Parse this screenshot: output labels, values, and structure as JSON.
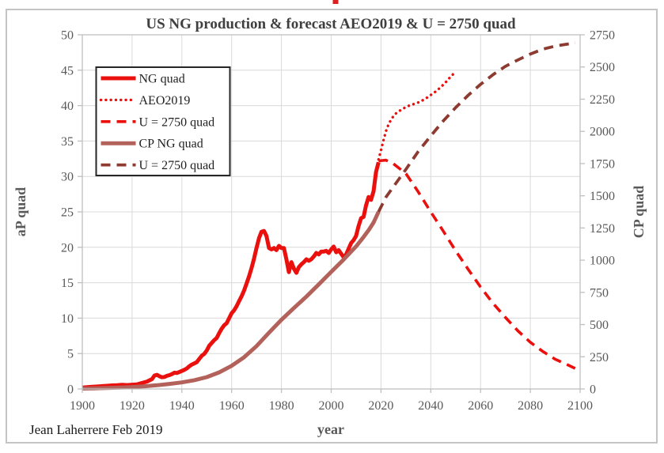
{
  "figure": {
    "attribution": "Jean Laherrere Feb 2019"
  },
  "chart_data": {
    "type": "line",
    "title": "US NG production & forecast AEO2019 & U = 2750 quad",
    "xlabel": "year",
    "ylabel_left": "aP quad",
    "ylabel_right": "CP quad",
    "x_range": [
      1900,
      2100
    ],
    "left_range": [
      0,
      50
    ],
    "right_range": [
      0,
      2750
    ],
    "x_ticks": [
      1900,
      1920,
      1940,
      1960,
      1980,
      2000,
      2020,
      2040,
      2060,
      2080,
      2100
    ],
    "left_ticks": [
      0,
      5,
      10,
      15,
      20,
      25,
      30,
      35,
      40,
      45,
      50
    ],
    "right_ticks": [
      0,
      250,
      500,
      750,
      1000,
      1250,
      1500,
      1750,
      2000,
      2250,
      2500,
      2750
    ],
    "grid": true,
    "legend_position": "top-left",
    "colors": {
      "red": "#ea100e",
      "brick": "#b2625a",
      "dark_brick": "#8d3a30",
      "grid": "#d9d9d9",
      "axis_line": "#bfbfbf",
      "tick_text": "#595959",
      "title_text": "#3f3f3f",
      "legend_border": "#262626",
      "frame": "#c4c4c4",
      "attribution_text": "#1a1a1a"
    },
    "series": [
      {
        "name": "NG quad",
        "axis": "left",
        "line": "solid",
        "width": 5,
        "color": "#ea100e",
        "points": [
          [
            1900,
            0.2
          ],
          [
            1902,
            0.25
          ],
          [
            1904,
            0.3
          ],
          [
            1906,
            0.35
          ],
          [
            1908,
            0.4
          ],
          [
            1910,
            0.45
          ],
          [
            1912,
            0.5
          ],
          [
            1914,
            0.52
          ],
          [
            1916,
            0.58
          ],
          [
            1918,
            0.55
          ],
          [
            1920,
            0.6
          ],
          [
            1922,
            0.65
          ],
          [
            1924,
            0.85
          ],
          [
            1926,
            1.05
          ],
          [
            1928,
            1.4
          ],
          [
            1929,
            1.9
          ],
          [
            1930,
            2.0
          ],
          [
            1931,
            1.8
          ],
          [
            1932,
            1.65
          ],
          [
            1933,
            1.7
          ],
          [
            1934,
            1.85
          ],
          [
            1935,
            1.95
          ],
          [
            1936,
            2.1
          ],
          [
            1937,
            2.3
          ],
          [
            1938,
            2.25
          ],
          [
            1939,
            2.4
          ],
          [
            1940,
            2.55
          ],
          [
            1941,
            2.7
          ],
          [
            1942,
            2.9
          ],
          [
            1943,
            3.2
          ],
          [
            1944,
            3.45
          ],
          [
            1945,
            3.6
          ],
          [
            1946,
            3.8
          ],
          [
            1947,
            4.25
          ],
          [
            1948,
            4.7
          ],
          [
            1949,
            4.95
          ],
          [
            1950,
            5.45
          ],
          [
            1951,
            6.1
          ],
          [
            1952,
            6.5
          ],
          [
            1953,
            6.9
          ],
          [
            1954,
            7.2
          ],
          [
            1955,
            7.9
          ],
          [
            1956,
            8.5
          ],
          [
            1957,
            9.0
          ],
          [
            1958,
            9.3
          ],
          [
            1959,
            10.0
          ],
          [
            1960,
            10.7
          ],
          [
            1961,
            11.1
          ],
          [
            1962,
            11.7
          ],
          [
            1963,
            12.4
          ],
          [
            1964,
            13.1
          ],
          [
            1965,
            13.9
          ],
          [
            1966,
            14.9
          ],
          [
            1967,
            15.9
          ],
          [
            1968,
            17.1
          ],
          [
            1969,
            18.4
          ],
          [
            1970,
            19.9
          ],
          [
            1971,
            21.3
          ],
          [
            1972,
            22.2
          ],
          [
            1973,
            22.3
          ],
          [
            1974,
            21.6
          ],
          [
            1975,
            19.9
          ],
          [
            1976,
            19.7
          ],
          [
            1977,
            19.9
          ],
          [
            1978,
            19.6
          ],
          [
            1979,
            20.2
          ],
          [
            1980,
            19.9
          ],
          [
            1981,
            19.9
          ],
          [
            1982,
            18.3
          ],
          [
            1983,
            16.5
          ],
          [
            1984,
            17.9
          ],
          [
            1985,
            17.0
          ],
          [
            1986,
            16.4
          ],
          [
            1987,
            17.2
          ],
          [
            1988,
            17.6
          ],
          [
            1989,
            17.9
          ],
          [
            1990,
            18.3
          ],
          [
            1991,
            18.1
          ],
          [
            1992,
            18.3
          ],
          [
            1993,
            18.7
          ],
          [
            1994,
            19.2
          ],
          [
            1995,
            19.0
          ],
          [
            1996,
            19.4
          ],
          [
            1997,
            19.4
          ],
          [
            1998,
            19.5
          ],
          [
            1999,
            19.2
          ],
          [
            2000,
            19.7
          ],
          [
            2001,
            20.1
          ],
          [
            2002,
            19.3
          ],
          [
            2003,
            19.6
          ],
          [
            2004,
            19.1
          ],
          [
            2005,
            18.6
          ],
          [
            2006,
            19.0
          ],
          [
            2007,
            19.8
          ],
          [
            2008,
            20.6
          ],
          [
            2009,
            21.0
          ],
          [
            2010,
            21.6
          ],
          [
            2011,
            23.0
          ],
          [
            2012,
            24.1
          ],
          [
            2013,
            24.3
          ],
          [
            2014,
            25.9
          ],
          [
            2015,
            27.1
          ],
          [
            2016,
            26.7
          ],
          [
            2017,
            27.9
          ],
          [
            2018,
            30.6
          ],
          [
            2019,
            32.0
          ]
        ]
      },
      {
        "name": "AEO2019",
        "axis": "left",
        "line": "dotted",
        "width": 3.4,
        "color": "#ea100e",
        "points": [
          [
            2019,
            32.4
          ],
          [
            2020,
            33.7
          ],
          [
            2021,
            35.1
          ],
          [
            2022,
            36.4
          ],
          [
            2023,
            37.3
          ],
          [
            2024,
            38.0
          ],
          [
            2025,
            38.5
          ],
          [
            2026,
            38.9
          ],
          [
            2028,
            39.4
          ],
          [
            2030,
            39.8
          ],
          [
            2032,
            40.1
          ],
          [
            2034,
            40.3
          ],
          [
            2036,
            40.6
          ],
          [
            2038,
            41.0
          ],
          [
            2040,
            41.5
          ],
          [
            2042,
            42.0
          ],
          [
            2044,
            42.6
          ],
          [
            2046,
            43.3
          ],
          [
            2048,
            44.1
          ],
          [
            2050,
            44.8
          ]
        ]
      },
      {
        "name": "U = 2750 quad",
        "axis": "left",
        "line": "dashed",
        "width": 3.6,
        "color": "#ea100e",
        "points": [
          [
            2019,
            32.2
          ],
          [
            2022,
            32.3
          ],
          [
            2025,
            31.8
          ],
          [
            2030,
            30.4
          ],
          [
            2035,
            27.8
          ],
          [
            2040,
            25.0
          ],
          [
            2045,
            22.3
          ],
          [
            2050,
            19.5
          ],
          [
            2055,
            16.9
          ],
          [
            2060,
            14.4
          ],
          [
            2065,
            12.1
          ],
          [
            2070,
            10.1
          ],
          [
            2075,
            8.2
          ],
          [
            2080,
            6.6
          ],
          [
            2085,
            5.3
          ],
          [
            2090,
            4.2
          ],
          [
            2095,
            3.4
          ],
          [
            2098,
            2.9
          ]
        ]
      },
      {
        "name": "CP NG quad",
        "axis": "right",
        "line": "solid",
        "width": 5,
        "color": "#b2625a",
        "points": [
          [
            1900,
            3
          ],
          [
            1905,
            5
          ],
          [
            1910,
            8
          ],
          [
            1915,
            11
          ],
          [
            1920,
            15
          ],
          [
            1925,
            21
          ],
          [
            1930,
            29
          ],
          [
            1935,
            39
          ],
          [
            1940,
            51
          ],
          [
            1945,
            68
          ],
          [
            1950,
            92
          ],
          [
            1955,
            129
          ],
          [
            1960,
            180
          ],
          [
            1965,
            246
          ],
          [
            1970,
            333
          ],
          [
            1975,
            437
          ],
          [
            1980,
            537
          ],
          [
            1985,
            628
          ],
          [
            1990,
            717
          ],
          [
            1995,
            812
          ],
          [
            2000,
            909
          ],
          [
            2005,
            1005
          ],
          [
            2010,
            1107
          ],
          [
            2013,
            1180
          ],
          [
            2015,
            1232
          ],
          [
            2017,
            1292
          ],
          [
            2019,
            1375
          ]
        ]
      },
      {
        "name": "U = 2750 quad",
        "axis": "right",
        "line": "dashed",
        "width": 3.8,
        "color": "#8d3a30",
        "points": [
          [
            2019,
            1375
          ],
          [
            2022,
            1490
          ],
          [
            2025,
            1570
          ],
          [
            2030,
            1705
          ],
          [
            2035,
            1845
          ],
          [
            2040,
            1965
          ],
          [
            2045,
            2080
          ],
          [
            2050,
            2185
          ],
          [
            2055,
            2280
          ],
          [
            2060,
            2365
          ],
          [
            2065,
            2440
          ],
          [
            2070,
            2505
          ],
          [
            2075,
            2555
          ],
          [
            2080,
            2600
          ],
          [
            2085,
            2638
          ],
          [
            2090,
            2662
          ],
          [
            2095,
            2678
          ],
          [
            2098,
            2688
          ]
        ]
      }
    ]
  }
}
